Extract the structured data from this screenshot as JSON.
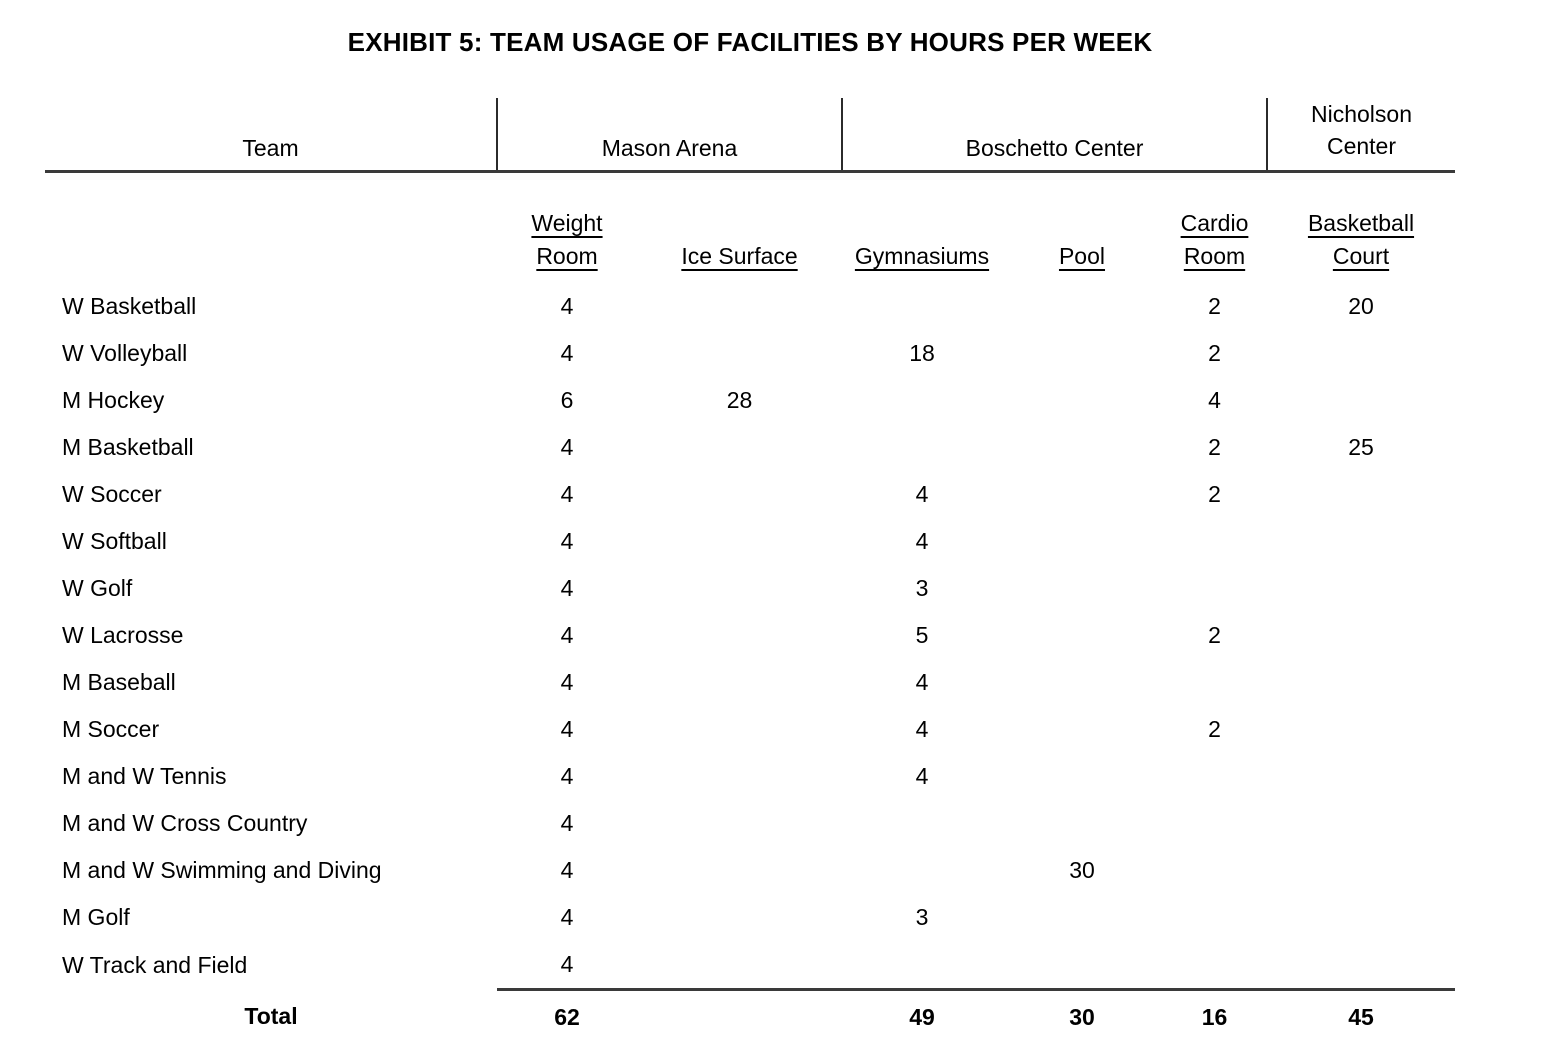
{
  "page": {
    "title": "EXHIBIT 5: TEAM USAGE OF FACILITIES BY HOURS PER WEEK"
  },
  "table": {
    "group_headers": {
      "team": "Team",
      "mason_arena": "Mason Arena",
      "boschetto_center": "Boschetto Center",
      "nicholson_center": "Nicholson Center"
    },
    "column_headers": {
      "weight_room": "Weight Room",
      "ice_surface": "Ice Surface",
      "gymnasiums": "Gymnasiums",
      "pool": "Pool",
      "cardio_room": "Cardio Room",
      "basketball_court": "Basketball Court"
    },
    "rows": [
      {
        "team": "W Basketball",
        "values": [
          "4",
          "",
          "",
          "",
          "2",
          "20"
        ]
      },
      {
        "team": "W Volleyball",
        "values": [
          "4",
          "",
          "18",
          "",
          "2",
          ""
        ]
      },
      {
        "team": "M Hockey",
        "values": [
          "6",
          "28",
          "",
          "",
          "4",
          ""
        ]
      },
      {
        "team": "M Basketball",
        "values": [
          "4",
          "",
          "",
          "",
          "2",
          "25"
        ]
      },
      {
        "team": "W Soccer",
        "values": [
          "4",
          "",
          "4",
          "",
          "2",
          ""
        ]
      },
      {
        "team": "W Softball",
        "values": [
          "4",
          "",
          "4",
          "",
          "",
          ""
        ]
      },
      {
        "team": "W Golf",
        "values": [
          "4",
          "",
          "3",
          "",
          "",
          ""
        ]
      },
      {
        "team": "W Lacrosse",
        "values": [
          "4",
          "",
          "5",
          "",
          "2",
          ""
        ]
      },
      {
        "team": "M Baseball",
        "values": [
          "4",
          "",
          "4",
          "",
          "",
          ""
        ]
      },
      {
        "team": "M Soccer",
        "values": [
          "4",
          "",
          "4",
          "",
          "2",
          ""
        ]
      },
      {
        "team": "M and W Tennis",
        "values": [
          "4",
          "",
          "4",
          "",
          "",
          ""
        ]
      },
      {
        "team": "M and W Cross Country",
        "values": [
          "4",
          "",
          "",
          "",
          "",
          ""
        ]
      },
      {
        "team": "M and W Swimming and Diving",
        "values": [
          "4",
          "",
          "",
          "30",
          "",
          ""
        ]
      },
      {
        "team": "M Golf",
        "values": [
          "4",
          "",
          "3",
          "",
          "",
          ""
        ]
      },
      {
        "team": "W Track and Field",
        "values": [
          "4",
          "",
          "",
          "",
          "",
          ""
        ]
      }
    ],
    "total": {
      "label": "Total",
      "values": [
        "62",
        "",
        "49",
        "30",
        "16",
        "45"
      ]
    }
  }
}
